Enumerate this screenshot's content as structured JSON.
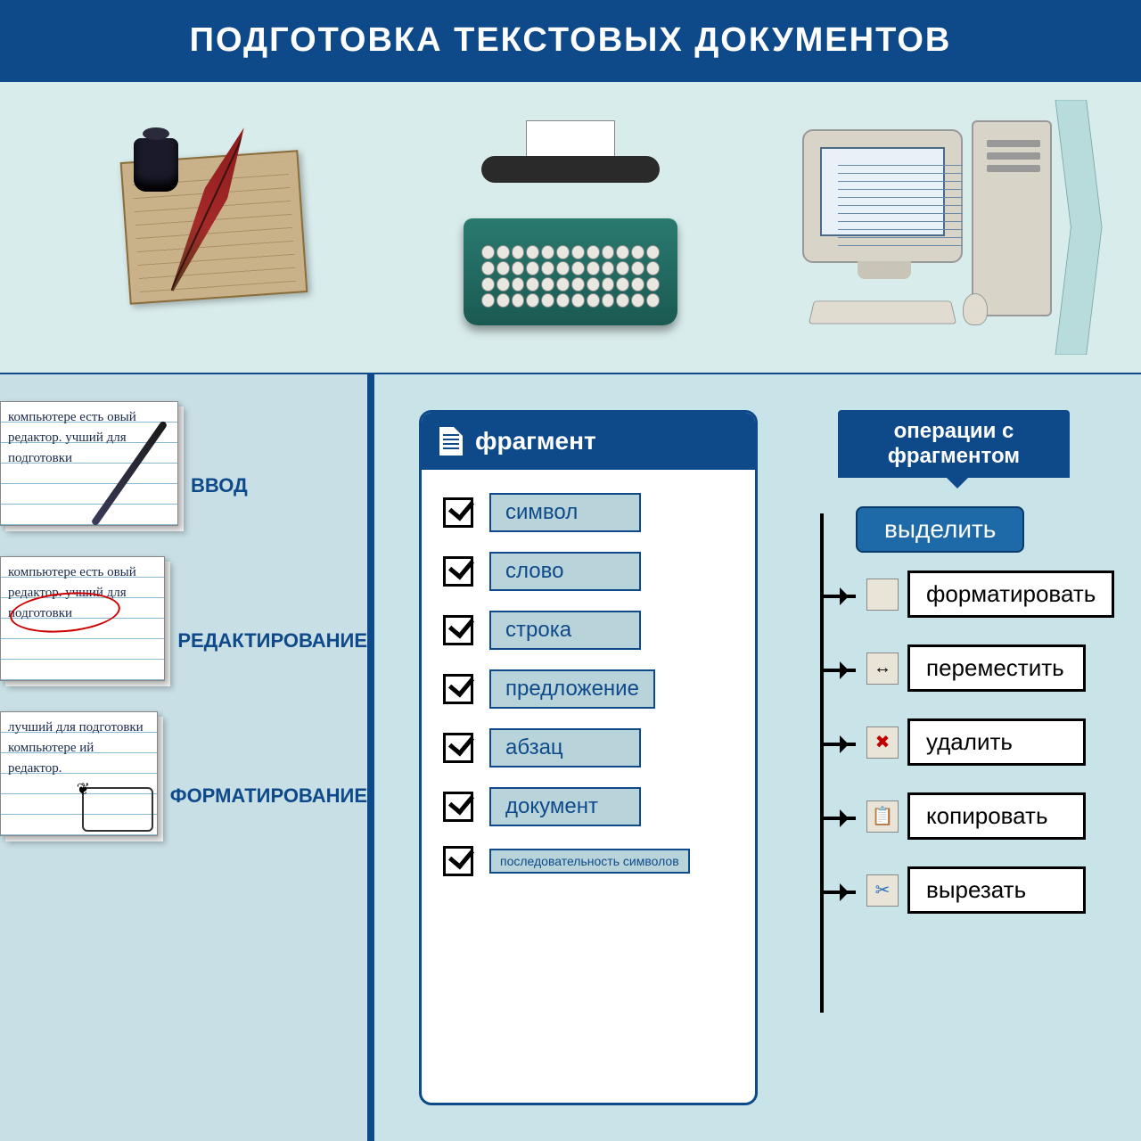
{
  "title": "ПОДГОТОВКА ТЕКСТОВЫХ ДОКУМЕНТОВ",
  "colors": {
    "primary": "#0e4a8a",
    "band_bg": "#d9ecec",
    "left_bg": "#c8dfe6",
    "right_bg": "#c8e4e8",
    "frag_item_bg": "#b8d4da",
    "select_btn": "#1e6aa8"
  },
  "evolution": {
    "items": [
      "quill-parchment",
      "typewriter",
      "desktop-computer"
    ]
  },
  "steps": {
    "input": {
      "label": "ВВОД",
      "sample_text": "компьютере есть\nовый редактор.\nучший\nдля подготовки"
    },
    "edit": {
      "label": "РЕДАКТИРОВАНИЕ",
      "sample_text": "компьютере есть\nовый редактор.\nучший\nдля подготовки"
    },
    "format": {
      "label": "ФОРМАТИРОВАНИЕ",
      "sample_text": "лучший\nдля подготовки\nкомпьютере\nий редактор."
    }
  },
  "fragment": {
    "header": "фрагмент",
    "items": [
      "символ",
      "слово",
      "строка",
      "предложение",
      "абзац",
      "документ",
      "последовательность символов"
    ]
  },
  "operations": {
    "header": "операции с фрагментом",
    "select": "выделить",
    "ops": [
      {
        "label": "форматировать",
        "icon": ""
      },
      {
        "label": "переместить",
        "icon": "↔"
      },
      {
        "label": "удалить",
        "icon": "✖",
        "icon_color": "#c00000"
      },
      {
        "label": "копировать",
        "icon": "📋"
      },
      {
        "label": "вырезать",
        "icon": "✂",
        "icon_color": "#2a6ac0"
      }
    ]
  }
}
